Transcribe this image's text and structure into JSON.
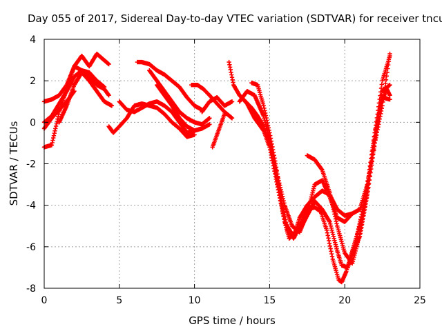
{
  "chart_data": {
    "type": "scatter",
    "title": "Day 055 of 2017, Sidereal Day-to-day VTEC variation (SDTVAR) for receiver tncu",
    "xlabel": "GPS time / hours",
    "ylabel": "SDTVAR / TECUs",
    "xlim": [
      0,
      25
    ],
    "ylim": [
      -8,
      4
    ],
    "xticks": [
      0,
      5,
      10,
      15,
      20,
      25
    ],
    "yticks": [
      -8,
      -6,
      -4,
      -2,
      0,
      2,
      4
    ],
    "grid": true,
    "marker": "plus",
    "color": "#ff0000",
    "series": [
      {
        "x": [
          0,
          0.5,
          1,
          1.5,
          2,
          2.5,
          3,
          3.5,
          4,
          4.3
        ],
        "y": [
          1.0,
          1.1,
          1.3,
          1.8,
          2.7,
          2.5,
          2.2,
          1.8,
          1.6,
          1.3
        ]
      },
      {
        "x": [
          0,
          0.5,
          1,
          1.5,
          2,
          2.5,
          3,
          3.5,
          4
        ],
        "y": [
          0.0,
          0.3,
          0.9,
          1.5,
          2.2,
          2.5,
          2.4,
          2.0,
          1.7
        ]
      },
      {
        "x": [
          0,
          0.5,
          1,
          1.5,
          2,
          2.5,
          3,
          3.5,
          4.3
        ],
        "y": [
          -1.2,
          -1.1,
          0.5,
          1.6,
          2.7,
          3.2,
          2.7,
          3.3,
          2.8
        ]
      },
      {
        "x": [
          0,
          0.5,
          1,
          1.5,
          2
        ],
        "y": [
          -0.3,
          0.2,
          0.6,
          1.0,
          1.5
        ]
      },
      {
        "x": [
          1,
          1.5,
          2,
          2.5,
          3,
          3.5,
          4,
          4.5
        ],
        "y": [
          0.0,
          0.8,
          1.8,
          2.4,
          2.0,
          1.5,
          1.0,
          0.8
        ]
      },
      {
        "x": [
          4.3,
          4.6,
          5,
          5.5,
          6,
          6.5,
          7,
          7.5,
          8,
          8.5,
          9,
          9.5,
          10
        ],
        "y": [
          -0.2,
          -0.5,
          -0.2,
          0.2,
          0.8,
          0.9,
          0.8,
          0.7,
          0.4,
          0.0,
          -0.3,
          -0.7,
          -0.6
        ]
      },
      {
        "x": [
          5,
          5.5,
          6,
          6.5,
          7,
          7.5,
          8,
          8.5,
          9,
          9.5,
          10
        ],
        "y": [
          1.0,
          0.6,
          0.5,
          0.7,
          0.9,
          1.0,
          0.8,
          0.5,
          0.0,
          -0.5,
          -0.4
        ]
      },
      {
        "x": [
          6.2,
          6.5,
          7,
          7.5,
          8,
          8.5,
          9,
          9.5,
          10,
          10.5
        ],
        "y": [
          2.9,
          2.9,
          2.8,
          2.5,
          2.3,
          2.0,
          1.7,
          1.2,
          0.8,
          0.6
        ]
      },
      {
        "x": [
          7,
          7.5,
          8,
          8.5,
          9,
          9.5,
          10,
          10.5,
          11
        ],
        "y": [
          2.5,
          2.0,
          1.5,
          1.0,
          0.5,
          0.2,
          0.0,
          -0.1,
          0.2
        ]
      },
      {
        "x": [
          7.5,
          8,
          8.5,
          9,
          9.5,
          10,
          10.5,
          11
        ],
        "y": [
          1.8,
          1.3,
          0.8,
          0.2,
          -0.2,
          -0.4,
          -0.3,
          -0.1
        ]
      },
      {
        "x": [
          9.8,
          10.2,
          10.6,
          11,
          11.5,
          12,
          12.5
        ],
        "y": [
          1.8,
          1.8,
          1.6,
          1.3,
          0.9,
          0.5,
          0.2
        ]
      },
      {
        "x": [
          10.5,
          11,
          11.5,
          12,
          12.5
        ],
        "y": [
          0.5,
          1.0,
          1.2,
          0.8,
          1.0
        ]
      },
      {
        "x": [
          11.2,
          11.6,
          12
        ],
        "y": [
          -1.2,
          -0.4,
          0.4
        ]
      },
      {
        "x": [
          12.3,
          12.6,
          13,
          13.5,
          14,
          14.3,
          14.6,
          15,
          15.5,
          16,
          16.3,
          16.7,
          17,
          17.5,
          18,
          18.5,
          19,
          19.5,
          20,
          20.5,
          21,
          21.5,
          22,
          22.5,
          23
        ],
        "y": [
          2.9,
          1.8,
          1.3,
          0.9,
          0.2,
          -0.1,
          -0.4,
          -1.2,
          -3.0,
          -4.8,
          -5.6,
          -5.3,
          -4.6,
          -4.0,
          -3.6,
          -3.3,
          -3.5,
          -4.2,
          -4.5,
          -4.4,
          -4.2,
          -3.0,
          -1.0,
          0.8,
          3.3
        ]
      },
      {
        "x": [
          13,
          13.5,
          14,
          14.3,
          14.6,
          15,
          15.5,
          16,
          16.5,
          17,
          17.5,
          18,
          18.5,
          19,
          19.5,
          19.8,
          20.2,
          20.6,
          21,
          21.5,
          22,
          22.5,
          23
        ],
        "y": [
          1.0,
          1.5,
          1.3,
          0.8,
          0.3,
          -0.8,
          -2.8,
          -4.8,
          -5.4,
          -5.2,
          -4.5,
          -3.8,
          -4.2,
          -4.8,
          -6.2,
          -6.9,
          -7.0,
          -6.2,
          -5.5,
          -3.5,
          -1.0,
          1.5,
          1.8
        ]
      },
      {
        "x": [
          13.8,
          14.2,
          14.6,
          15,
          15.4,
          15.8,
          16.2,
          16.6,
          17,
          17.5,
          18,
          18.4,
          18.8,
          19.2,
          19.6,
          19.8,
          20.1,
          20.5,
          21,
          21.5,
          22,
          22.5,
          23
        ],
        "y": [
          1.9,
          1.8,
          0.8,
          -0.5,
          -2.0,
          -3.8,
          -5.2,
          -5.6,
          -5.0,
          -4.2,
          -4.1,
          -4.3,
          -5.2,
          -6.6,
          -7.6,
          -7.7,
          -7.2,
          -6.2,
          -5.0,
          -3.0,
          -0.5,
          1.2,
          1.1
        ]
      },
      {
        "x": [
          13,
          13.4,
          13.8,
          14.2,
          14.6,
          15,
          15.5,
          16,
          16.5,
          17,
          17.5,
          18,
          18.5,
          19,
          19.5,
          20,
          20.5
        ],
        "y": [
          1.3,
          1.0,
          0.7,
          0.3,
          -0.2,
          -1.0,
          -2.5,
          -4.0,
          -5.0,
          -5.3,
          -4.4,
          -3.0,
          -2.8,
          -3.6,
          -4.6,
          -4.8,
          -4.4
        ]
      },
      {
        "x": [
          17.5,
          18,
          18.5,
          19,
          19.5,
          20,
          20.5,
          21,
          21.5,
          22,
          22.5,
          23
        ],
        "y": [
          -1.6,
          -1.8,
          -2.3,
          -3.4,
          -5.0,
          -6.3,
          -6.8,
          -5.4,
          -3.4,
          -0.5,
          2.0,
          3.2
        ]
      },
      {
        "x": [
          20.4,
          20.8,
          21.2,
          21.6,
          22,
          22.4,
          22.8,
          23
        ],
        "y": [
          -6.5,
          -5.5,
          -4.2,
          -2.8,
          -0.8,
          0.9,
          1.6,
          1.3
        ]
      }
    ]
  }
}
